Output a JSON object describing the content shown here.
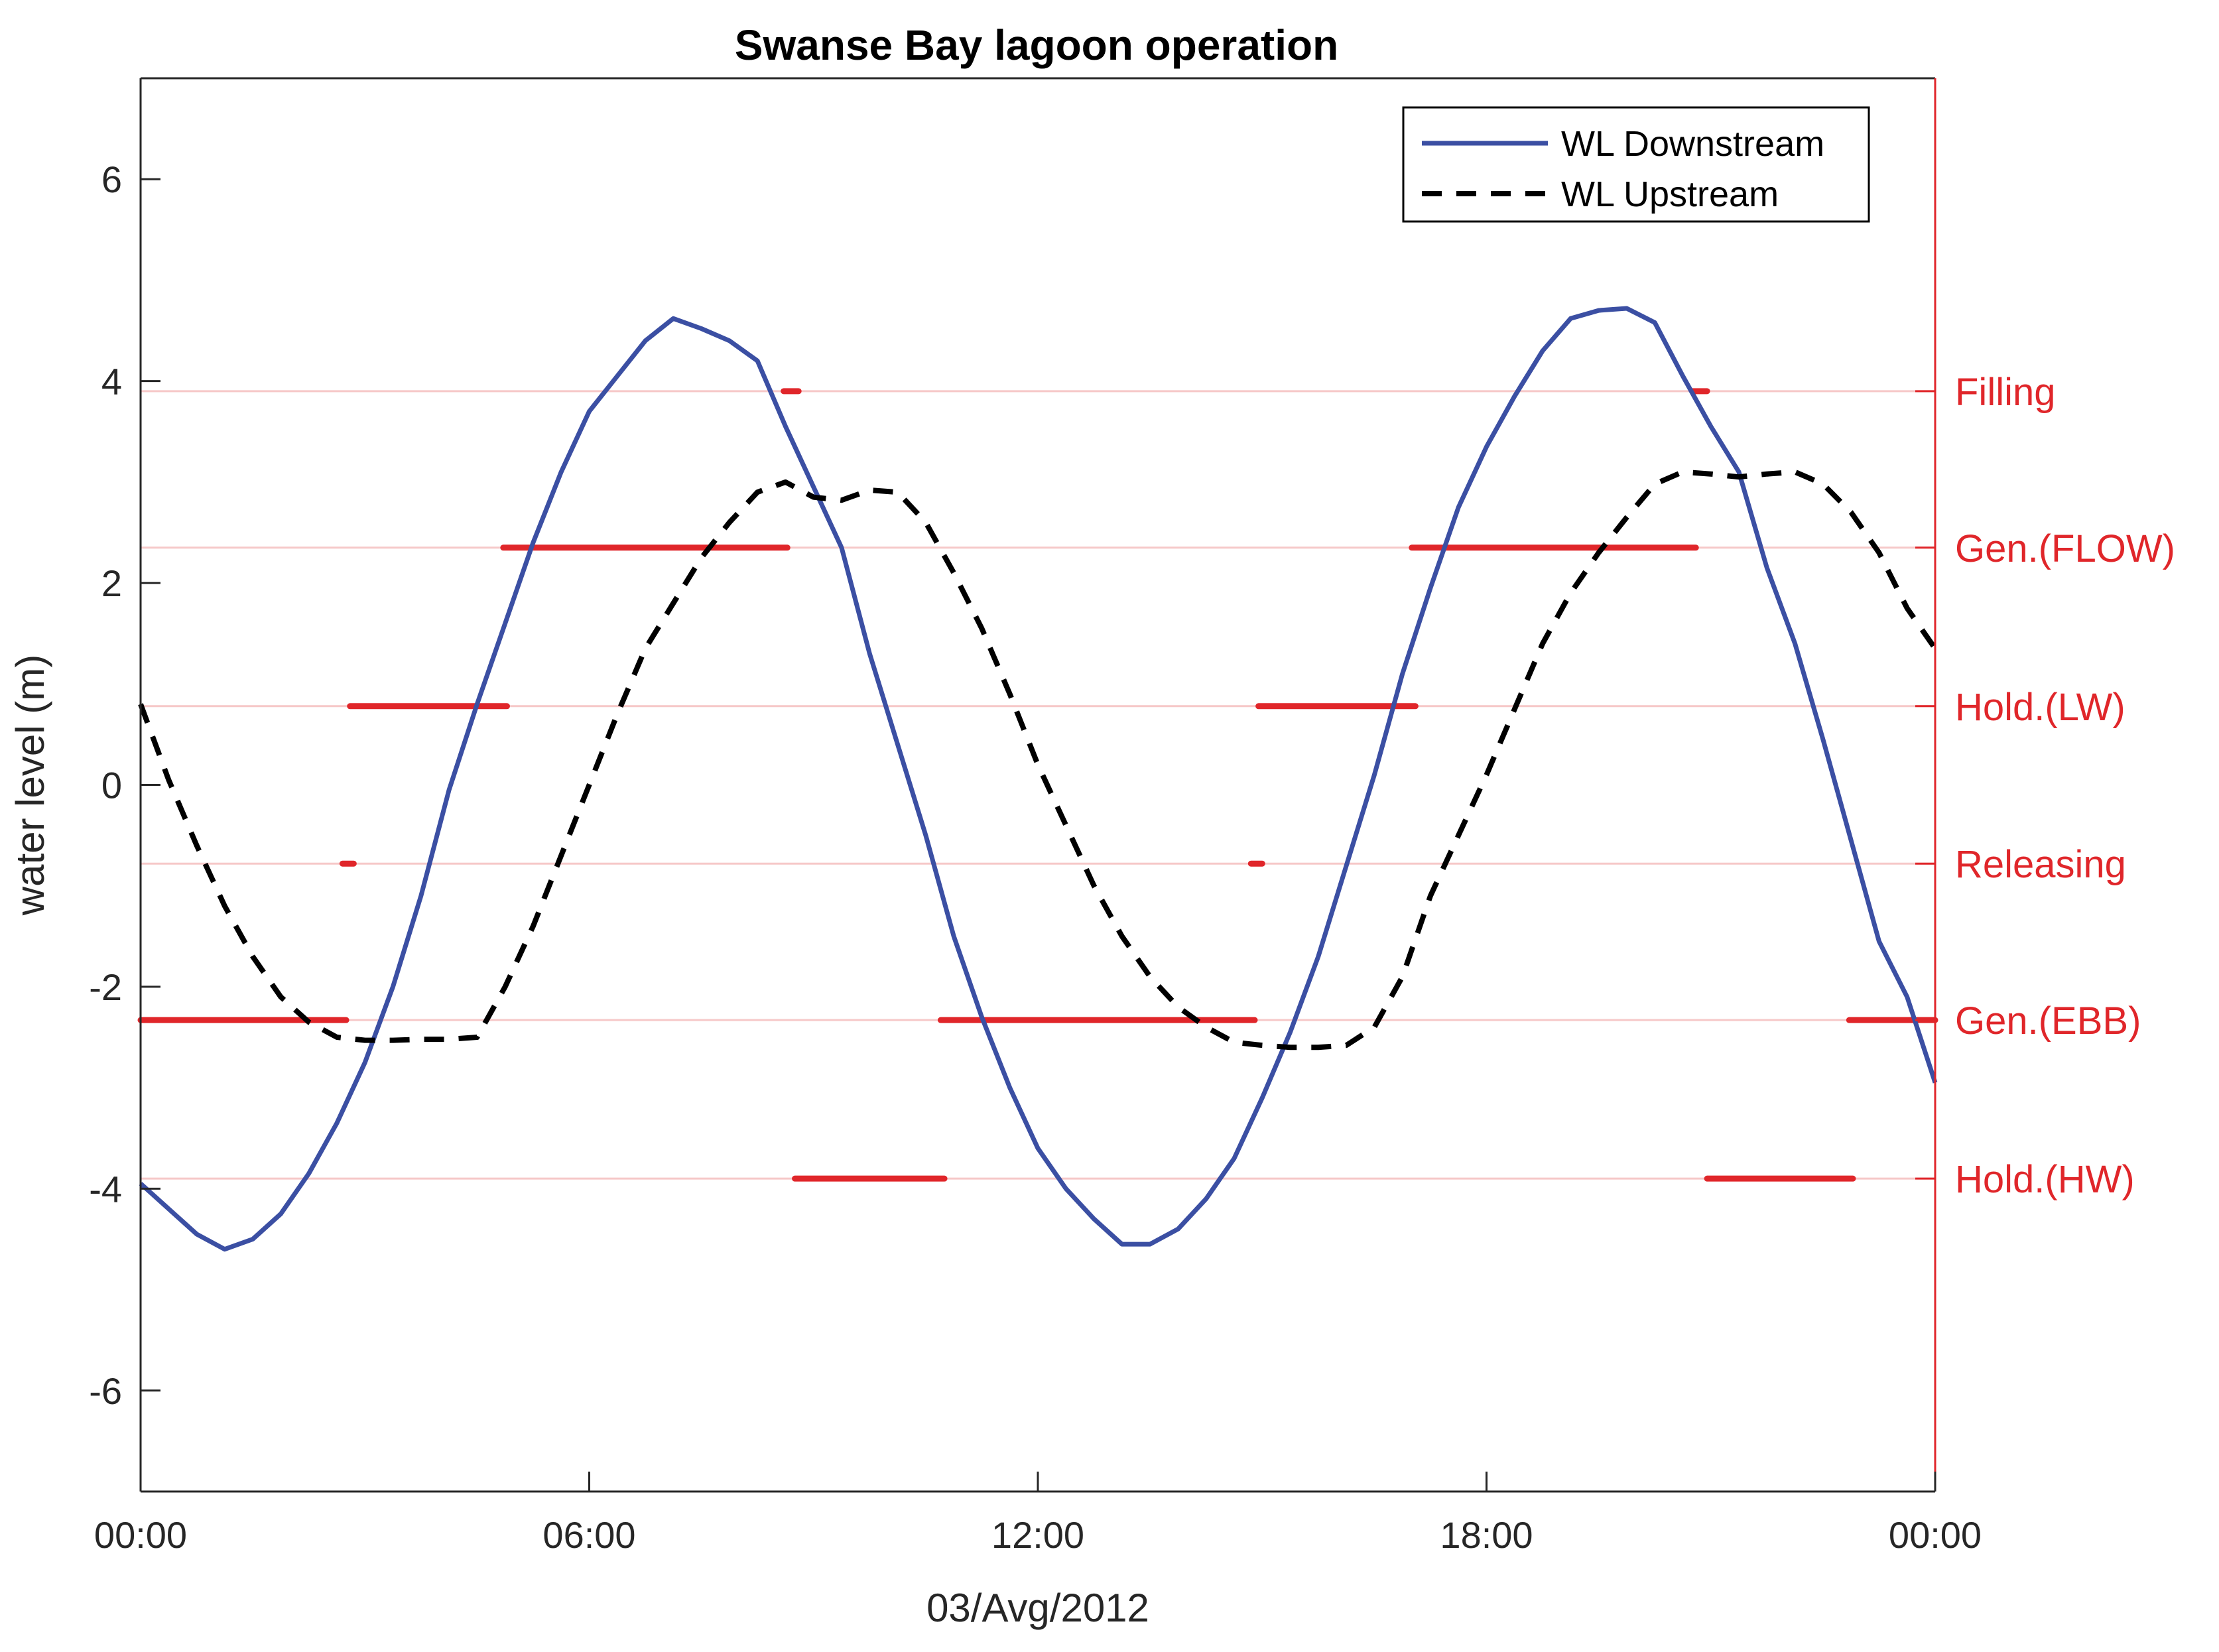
{
  "chart_data": {
    "type": "line",
    "title": "Swanse Bay lagoon operation",
    "xlabel": "03/Avg/2012",
    "ylabel": "water level (m)",
    "x_unit": "hours",
    "xlim": [
      0,
      24
    ],
    "ylim": [
      -7,
      7
    ],
    "x_ticks": [
      0,
      6,
      12,
      18,
      24
    ],
    "x_tick_labels": [
      "00:00",
      "06:00",
      "12:00",
      "18:00",
      "00:00"
    ],
    "y_ticks": [
      -6,
      -4,
      -2,
      0,
      2,
      4,
      6
    ],
    "y_tick_labels": [
      "-6",
      "-4",
      "-2",
      "0",
      "2",
      "4",
      "6"
    ],
    "legend": {
      "position": "top-right",
      "entries": [
        "WL Downstream",
        "WL Upstream"
      ]
    },
    "grid": false,
    "series": [
      {
        "name": "WL Downstream",
        "color": "#3b4fa3",
        "style": "solid",
        "x": [
          0,
          0.375,
          0.75,
          1.125,
          1.5,
          1.875,
          2.25,
          2.625,
          3.0,
          3.375,
          3.75,
          4.125,
          4.5,
          4.875,
          5.25,
          5.625,
          6.0,
          6.375,
          6.75,
          7.125,
          7.5,
          7.875,
          8.25,
          8.625,
          9.0,
          9.375,
          9.75,
          10.125,
          10.5,
          10.875,
          11.25,
          11.625,
          12.0,
          12.375,
          12.75,
          13.125,
          13.5,
          13.875,
          14.25,
          14.625,
          15.0,
          15.375,
          15.75,
          16.125,
          16.5,
          16.875,
          17.25,
          17.625,
          18.0,
          18.375,
          18.75,
          19.125,
          19.5,
          19.875,
          20.25,
          20.625,
          21.0,
          21.375,
          21.75,
          22.125,
          22.5,
          22.875,
          23.25,
          23.625,
          24.0
        ],
        "y": [
          -3.95,
          -4.2,
          -4.45,
          -4.6,
          -4.5,
          -4.25,
          -3.85,
          -3.35,
          -2.75,
          -2.0,
          -1.1,
          -0.05,
          0.8,
          1.6,
          2.4,
          3.1,
          3.7,
          4.05,
          4.4,
          4.62,
          4.52,
          4.4,
          4.2,
          3.55,
          2.95,
          2.35,
          1.3,
          0.4,
          -0.5,
          -1.5,
          -2.3,
          -3.0,
          -3.6,
          -4.0,
          -4.3,
          -4.55,
          -4.55,
          -4.4,
          -4.1,
          -3.7,
          -3.1,
          -2.45,
          -1.7,
          -0.8,
          0.1,
          1.1,
          1.95,
          2.75,
          3.35,
          3.85,
          4.3,
          4.62,
          4.7,
          4.72,
          4.58,
          4.05,
          3.55,
          3.1,
          2.15,
          1.4,
          0.45,
          -0.55,
          -1.55,
          -2.1,
          -2.95
        ]
      },
      {
        "name": "WL Upstream",
        "color": "#000000",
        "style": "dashed",
        "x": [
          0,
          0.375,
          0.75,
          1.125,
          1.5,
          1.875,
          2.25,
          2.625,
          3.0,
          3.375,
          3.75,
          4.125,
          4.5,
          4.875,
          5.25,
          5.625,
          6.0,
          6.375,
          6.75,
          7.125,
          7.5,
          7.875,
          8.25,
          8.625,
          9.0,
          9.375,
          9.75,
          10.125,
          10.5,
          10.875,
          11.25,
          11.625,
          12.0,
          12.375,
          12.75,
          13.125,
          13.5,
          13.875,
          14.25,
          14.625,
          15.0,
          15.375,
          15.75,
          16.125,
          16.5,
          16.875,
          17.25,
          17.625,
          18.0,
          18.375,
          18.75,
          19.125,
          19.5,
          19.875,
          20.25,
          20.625,
          21.0,
          21.375,
          21.75,
          22.125,
          22.5,
          22.875,
          23.25,
          23.625,
          24.0
        ],
        "y": [
          0.8,
          0.05,
          -0.6,
          -1.2,
          -1.7,
          -2.1,
          -2.35,
          -2.5,
          -2.53,
          -2.53,
          -2.52,
          -2.52,
          -2.5,
          -2.0,
          -1.4,
          -0.7,
          0.0,
          0.7,
          1.35,
          1.8,
          2.25,
          2.6,
          2.9,
          3.0,
          2.85,
          2.82,
          2.92,
          2.9,
          2.6,
          2.1,
          1.55,
          0.9,
          0.2,
          -0.4,
          -1.0,
          -1.5,
          -1.9,
          -2.2,
          -2.4,
          -2.55,
          -2.58,
          -2.6,
          -2.6,
          -2.58,
          -2.4,
          -1.9,
          -1.1,
          -0.5,
          0.1,
          0.75,
          1.4,
          1.9,
          2.3,
          2.65,
          2.98,
          3.1,
          3.08,
          3.05,
          3.08,
          3.1,
          2.98,
          2.7,
          2.3,
          1.75,
          1.35
        ]
      }
    ],
    "operation_states": {
      "axis": "right",
      "color": "#e0262a",
      "levels": [
        "Filling",
        "Gen.(FLOW)",
        "Hold.(LW)",
        "Releasing",
        "Gen.(EBB)",
        "Hold.(HW)"
      ],
      "level_values": [
        3.9,
        2.35,
        0.78,
        -0.78,
        -2.33,
        -3.9
      ],
      "segments": [
        {
          "state": "Gen.(EBB)",
          "start": 0.0,
          "end": 2.75
        },
        {
          "state": "Releasing",
          "start": 2.7,
          "end": 2.85
        },
        {
          "state": "Hold.(LW)",
          "start": 2.8,
          "end": 4.9
        },
        {
          "state": "Gen.(FLOW)",
          "start": 4.85,
          "end": 8.65
        },
        {
          "state": "Filling",
          "start": 8.6,
          "end": 8.8
        },
        {
          "state": "Hold.(HW)",
          "start": 8.75,
          "end": 10.75
        },
        {
          "state": "Gen.(EBB)",
          "start": 10.7,
          "end": 14.9
        },
        {
          "state": "Releasing",
          "start": 14.85,
          "end": 15.0
        },
        {
          "state": "Hold.(LW)",
          "start": 14.95,
          "end": 17.05
        },
        {
          "state": "Gen.(FLOW)",
          "start": 17.0,
          "end": 20.8
        },
        {
          "state": "Filling",
          "start": 20.75,
          "end": 20.95
        },
        {
          "state": "Hold.(HW)",
          "start": 20.95,
          "end": 22.9
        },
        {
          "state": "Gen.(EBB)",
          "start": 22.85,
          "end": 24.0
        }
      ]
    }
  }
}
